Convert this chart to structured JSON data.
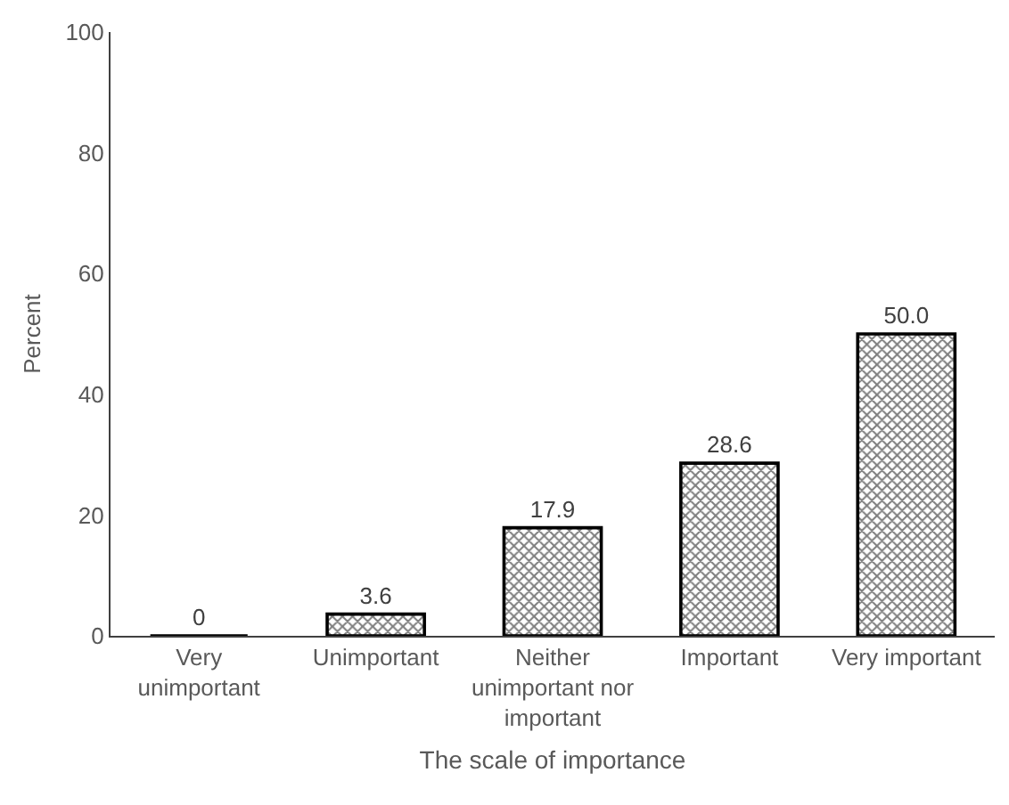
{
  "chart_data": {
    "type": "bar",
    "xlabel": "The scale of importance",
    "ylabel": "Percent",
    "categories": [
      "Very unimportant",
      "Unimportant",
      "Neither unimportant nor important",
      "Important",
      "Very important"
    ],
    "values": [
      0,
      3.6,
      17.9,
      28.6,
      50.0
    ],
    "value_labels": [
      "0",
      "3.6",
      "17.9",
      "28.6",
      "50.0"
    ],
    "color": "#000000",
    "ylim": [
      0,
      100
    ],
    "yticks": [
      0,
      20,
      40,
      60,
      80,
      100
    ]
  }
}
